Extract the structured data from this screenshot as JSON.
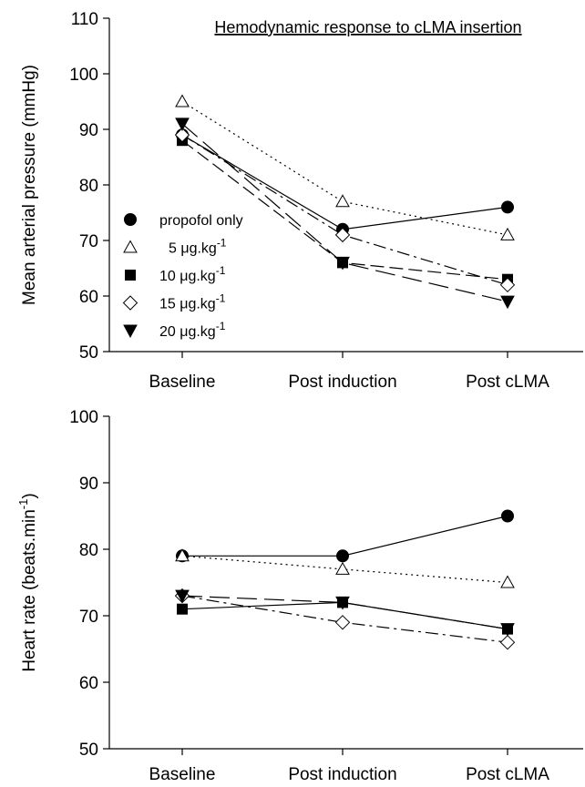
{
  "chart_data": [
    {
      "type": "line",
      "title": "Hemodynamic response to cLMA insertion",
      "xlabel": "",
      "ylabel": "Mean arterial pressure (mmHg)",
      "categories": [
        "Baseline",
        "Post induction",
        "Post cLMA"
      ],
      "ylim": [
        50,
        110
      ],
      "yticks": [
        50,
        60,
        70,
        80,
        90,
        100,
        110
      ],
      "grid": false,
      "legend": "left-middle",
      "series": [
        {
          "name": "propofol only",
          "marker": "circle-filled",
          "dash": "solid",
          "values": [
            89,
            72,
            76
          ]
        },
        {
          "name": "5 μg.kg-1",
          "marker": "triangle-up-open",
          "dash": "dotted",
          "values": [
            95,
            77,
            71
          ]
        },
        {
          "name": "10 μg.kg-1",
          "marker": "square-filled",
          "dash": "dashed",
          "values": [
            88,
            66,
            63
          ]
        },
        {
          "name": "15 μg.kg-1",
          "marker": "diamond-open",
          "dash": "dashdot",
          "values": [
            89,
            71,
            62
          ]
        },
        {
          "name": "20 μg.kg-1",
          "marker": "triangle-down-filled",
          "dash": "longdash",
          "values": [
            91,
            66,
            59
          ]
        }
      ]
    },
    {
      "type": "line",
      "title": "",
      "xlabel": "",
      "ylabel": "Heart rate (beats.min-1)",
      "categories": [
        "Baseline",
        "Post induction",
        "Post cLMA"
      ],
      "ylim": [
        50,
        100
      ],
      "yticks": [
        50,
        60,
        70,
        80,
        90,
        100
      ],
      "grid": false,
      "legend": "none",
      "series": [
        {
          "marker": "circle-filled",
          "dash": "solid",
          "values": [
            79,
            79,
            85
          ]
        },
        {
          "marker": "triangle-up-open",
          "dash": "dotted",
          "values": [
            79,
            77,
            75
          ]
        },
        {
          "marker": "square-filled",
          "dash": "solid",
          "values": [
            71,
            72,
            68
          ]
        },
        {
          "marker": "diamond-open",
          "dash": "dashdot",
          "values": [
            73,
            69,
            66
          ]
        },
        {
          "marker": "triangle-down-filled",
          "dash": "longdash",
          "values": [
            73,
            72,
            68
          ]
        }
      ]
    }
  ]
}
